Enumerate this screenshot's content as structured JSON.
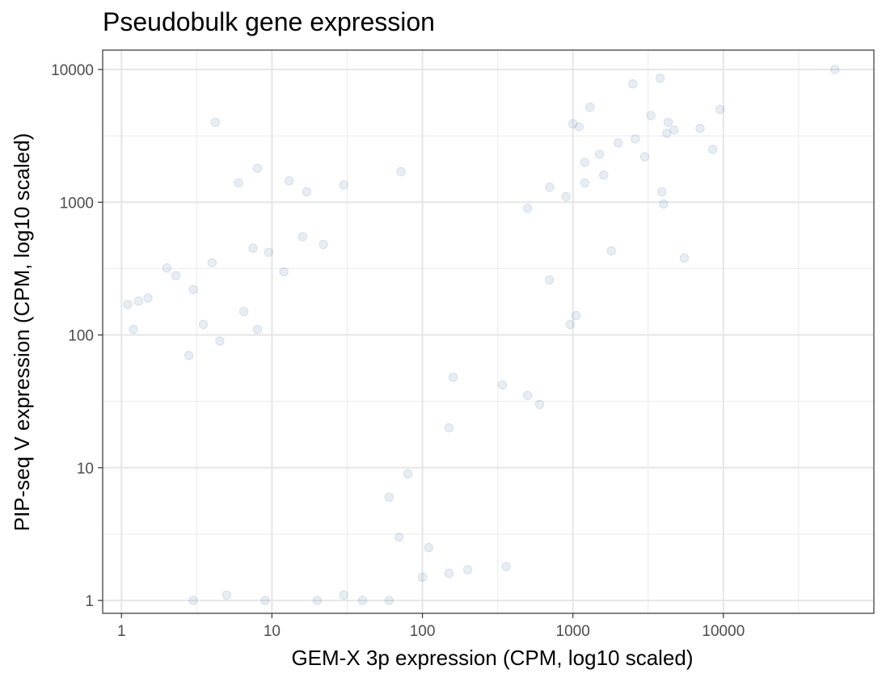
{
  "chart_data": {
    "type": "scatter",
    "title": "Pseudobulk gene expression",
    "xlabel": "GEM-X 3p expression (CPM, log10 scaled)",
    "ylabel": "PIP-seq V expression (CPM, log10 scaled)",
    "x_scale": "log10",
    "y_scale": "log10",
    "xlim": [
      0.75,
      100000
    ],
    "ylim": [
      0.8,
      14000
    ],
    "x_ticks": [
      1,
      10,
      100,
      1000,
      10000
    ],
    "x_tick_labels": [
      "1",
      "10",
      "100",
      "1000",
      "10000"
    ],
    "y_ticks": [
      1,
      10,
      100,
      1000,
      10000
    ],
    "y_tick_labels": [
      "1",
      "10",
      "100",
      "1000",
      "10000"
    ],
    "grid": true,
    "legend": "none",
    "point_color": "#1f538f",
    "point_alpha": 0.1,
    "series": [
      {
        "points": [
          [
            55000,
            10000
          ],
          [
            3800,
            8600
          ],
          [
            2500,
            7800
          ],
          [
            9500,
            5000
          ],
          [
            1300,
            5200
          ],
          [
            3300,
            4500
          ],
          [
            4300,
            4000
          ],
          [
            1000,
            3900
          ],
          [
            4700,
            3500
          ],
          [
            1100,
            3700
          ],
          [
            7000,
            3600
          ],
          [
            8500,
            2500
          ],
          [
            2600,
            3000
          ],
          [
            2000,
            2800
          ],
          [
            1500,
            2300
          ],
          [
            1200,
            2000
          ],
          [
            3000,
            2200
          ],
          [
            3900,
            1200
          ],
          [
            4000,
            970
          ],
          [
            5500,
            380
          ],
          [
            1800,
            430
          ],
          [
            1050,
            140
          ],
          [
            960,
            120
          ],
          [
            700,
            260
          ],
          [
            1200,
            1400
          ],
          [
            900,
            1100
          ],
          [
            700,
            1300
          ],
          [
            500,
            900
          ],
          [
            1600,
            1600
          ],
          [
            4200,
            3300
          ],
          [
            6,
            1400
          ],
          [
            8,
            1800
          ],
          [
            13,
            1450
          ],
          [
            17,
            1200
          ],
          [
            30,
            1350
          ],
          [
            72,
            1700
          ],
          [
            4.2,
            4000
          ],
          [
            7.5,
            450
          ],
          [
            9.5,
            420
          ],
          [
            12,
            300
          ],
          [
            16,
            550
          ],
          [
            22,
            480
          ],
          [
            2.3,
            280
          ],
          [
            3,
            220
          ],
          [
            4,
            350
          ],
          [
            2,
            320
          ],
          [
            1.5,
            190
          ],
          [
            1.3,
            180
          ],
          [
            1.1,
            170
          ],
          [
            1.2,
            110
          ],
          [
            3.5,
            120
          ],
          [
            4.5,
            90
          ],
          [
            6.5,
            150
          ],
          [
            8,
            110
          ],
          [
            2.8,
            70
          ],
          [
            160,
            48
          ],
          [
            340,
            42
          ],
          [
            600,
            30
          ],
          [
            500,
            35
          ],
          [
            150,
            20
          ],
          [
            80,
            9
          ],
          [
            60,
            6
          ],
          [
            70,
            3
          ],
          [
            110,
            2.5
          ],
          [
            200,
            1.7
          ],
          [
            360,
            1.8
          ],
          [
            150,
            1.6
          ],
          [
            100,
            1.5
          ],
          [
            60,
            1.0
          ],
          [
            40,
            1.0
          ],
          [
            30,
            1.1
          ],
          [
            20,
            1.0
          ],
          [
            9,
            1.0
          ],
          [
            5,
            1.1
          ],
          [
            3,
            1.0
          ]
        ]
      }
    ]
  }
}
